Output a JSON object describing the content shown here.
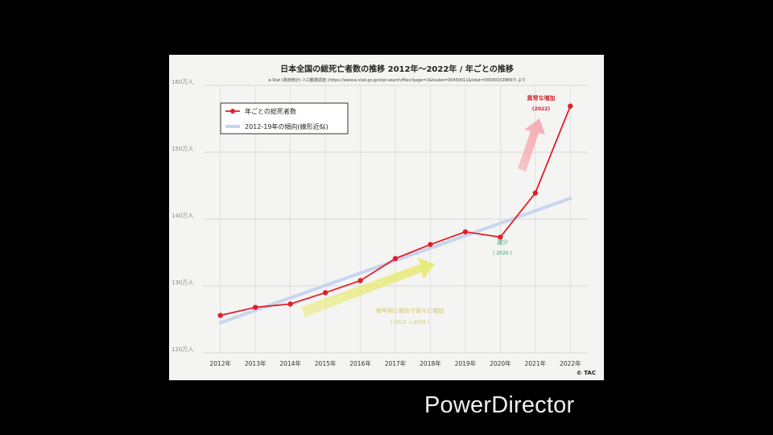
{
  "chart_data": {
    "type": "line",
    "title": "日本全国の総死亡者数の推移 2012年〜2022年 / 年ごとの推移",
    "subtitle": "e-Stat (政府統計) 人口動態調査 (https://www.e-stat.go.jp/stat-search/files?page=1&toukei=00450011&tstat=000001028897) より",
    "categories": [
      "2012年",
      "2013年",
      "2014年",
      "2015年",
      "2016年",
      "2017年",
      "2018年",
      "2019年",
      "2020年",
      "2021年",
      "2022年"
    ],
    "ylim": [
      120,
      160
    ],
    "y_ticks": [
      {
        "value": 120,
        "label": "120万人"
      },
      {
        "value": 130,
        "label": "130万人"
      },
      {
        "value": 140,
        "label": "140万人"
      },
      {
        "value": 150,
        "label": "150万人"
      },
      {
        "value": 160,
        "label": "160万人"
      }
    ],
    "series": [
      {
        "name": "年ごとの総死者数",
        "color": "#e0202a",
        "values": [
          125.6,
          126.8,
          127.3,
          129.0,
          130.8,
          134.1,
          136.2,
          138.1,
          137.3,
          143.9,
          156.9
        ]
      }
    ],
    "trend": {
      "name": "2012-19年の傾向(線形近似)",
      "color": "#c9d4f0",
      "start": 124.5,
      "end": 143.1
    },
    "annotations": {
      "steady_label": "毎年同じ傾向で徐々に増加",
      "steady_years": "( 2012 → 2019 )",
      "decrease_label": "減少",
      "decrease_year": "( 2020 )",
      "abnormal_label": "異常な増加",
      "abnormal_year": "(2022)"
    },
    "grid": true,
    "legend_position": "top-left",
    "copyright": "© TAC"
  },
  "overlay": {
    "watermark": "PowerDirector"
  }
}
